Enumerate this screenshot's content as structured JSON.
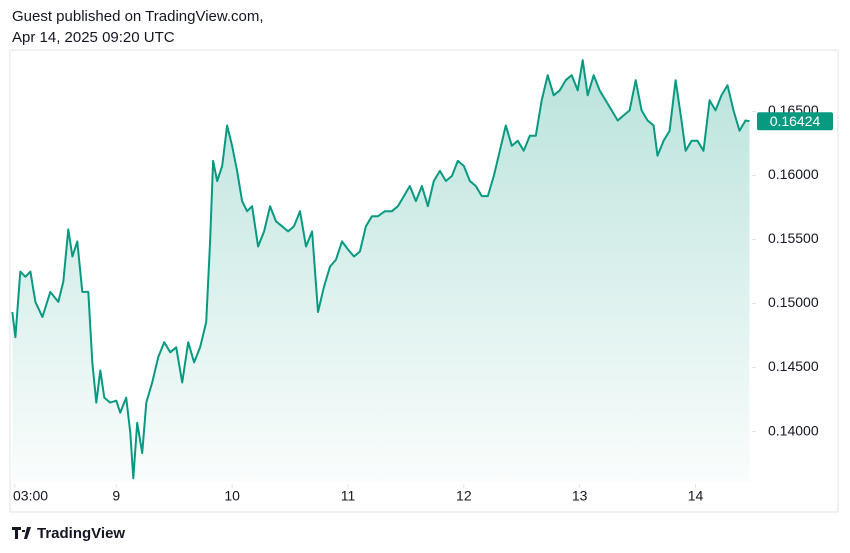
{
  "header": {
    "line1": "Guest published on TradingView.com,",
    "line2": "Apr 14, 2025 09:20 UTC"
  },
  "footer": {
    "brand": "TradingView"
  },
  "chart_data": {
    "type": "area",
    "color": "#089981",
    "x": [
      8.103,
      8.129,
      8.172,
      8.216,
      8.259,
      8.302,
      8.362,
      8.431,
      8.5,
      8.543,
      8.586,
      8.621,
      8.664,
      8.707,
      8.759,
      8.793,
      8.828,
      8.862,
      8.897,
      8.948,
      9,
      9.034,
      9.086,
      9.121,
      9.147,
      9.181,
      9.224,
      9.259,
      9.31,
      9.362,
      9.414,
      9.466,
      9.517,
      9.569,
      9.621,
      9.672,
      9.724,
      9.776,
      9.81,
      9.836,
      9.871,
      9.914,
      9.957,
      10,
      10.043,
      10.086,
      10.129,
      10.172,
      10.224,
      10.276,
      10.328,
      10.379,
      10.431,
      10.483,
      10.534,
      10.586,
      10.638,
      10.69,
      10.741,
      10.793,
      10.845,
      10.897,
      10.948,
      11,
      11.052,
      11.103,
      11.155,
      11.207,
      11.259,
      11.319,
      11.379,
      11.431,
      11.483,
      11.534,
      11.586,
      11.638,
      11.69,
      11.741,
      11.793,
      11.845,
      11.897,
      11.948,
      12,
      12.052,
      12.103,
      12.155,
      12.207,
      12.259,
      12.31,
      12.362,
      12.414,
      12.466,
      12.517,
      12.569,
      12.621,
      12.672,
      12.724,
      12.776,
      12.828,
      12.879,
      12.931,
      12.983,
      13.026,
      13.069,
      13.121,
      13.172,
      13.224,
      13.276,
      13.328,
      13.379,
      13.431,
      13.483,
      13.534,
      13.586,
      13.638,
      13.672,
      13.724,
      13.776,
      13.828,
      13.879,
      13.914,
      13.966,
      14.017,
      14.069,
      14.121,
      14.172,
      14.224,
      14.276,
      14.328,
      14.379,
      14.431,
      14.466
    ],
    "values": [
      0.14934,
      0.14737,
      0.15249,
      0.15209,
      0.15249,
      0.15013,
      0.14895,
      0.15091,
      0.15013,
      0.1517,
      0.15579,
      0.15367,
      0.15485,
      0.15091,
      0.15091,
      0.1454,
      0.14226,
      0.14477,
      0.14265,
      0.14226,
      0.14241,
      0.14147,
      0.14265,
      0.1399,
      0.13635,
      0.14068,
      0.13832,
      0.14226,
      0.14383,
      0.1458,
      0.14698,
      0.14619,
      0.14658,
      0.14383,
      0.14698,
      0.1454,
      0.14658,
      0.14855,
      0.15485,
      0.16114,
      0.15957,
      0.16075,
      0.1639,
      0.16232,
      0.16036,
      0.158,
      0.15721,
      0.1576,
      0.15445,
      0.15563,
      0.1576,
      0.15642,
      0.15603,
      0.15563,
      0.15603,
      0.15721,
      0.15445,
      0.15563,
      0.14934,
      0.15131,
      0.15288,
      0.15343,
      0.15485,
      0.15422,
      0.15367,
      0.15406,
      0.15603,
      0.15682,
      0.15682,
      0.15721,
      0.15721,
      0.1576,
      0.15839,
      0.15918,
      0.158,
      0.15918,
      0.1576,
      0.15957,
      0.16036,
      0.15957,
      0.15996,
      0.16114,
      0.16075,
      0.15957,
      0.15918,
      0.15839,
      0.15839,
      0.15996,
      0.16193,
      0.1639,
      0.16232,
      0.16271,
      0.16193,
      0.16311,
      0.16311,
      0.16587,
      0.16783,
      0.16626,
      0.16665,
      0.16744,
      0.16783,
      0.16665,
      0.16901,
      0.16626,
      0.16783,
      0.16665,
      0.16587,
      0.16508,
      0.16429,
      0.16469,
      0.16508,
      0.16744,
      0.16508,
      0.16429,
      0.1639,
      0.16154,
      0.16271,
      0.1635,
      0.16744,
      0.16429,
      0.16193,
      0.16271,
      0.16271,
      0.16193,
      0.16587,
      0.16508,
      0.16626,
      0.16705,
      0.16508,
      0.1635,
      0.16429,
      0.16424
    ],
    "xlim": [
      8.1,
      14.47
    ],
    "xticks": [
      {
        "value": 8.125,
        "label": "03:00"
      },
      9,
      10,
      11,
      12,
      13,
      14
    ],
    "ylim": [
      0.13606,
      0.1698
    ],
    "yticks": [
      {
        "value": 0.14,
        "label": "0.14000"
      },
      {
        "value": 0.145,
        "label": "0.14500"
      },
      {
        "value": 0.15,
        "label": "0.15000"
      },
      {
        "value": 0.155,
        "label": "0.15500"
      },
      {
        "value": 0.16,
        "label": "0.16000"
      },
      {
        "value": 0.165,
        "label": "0.16500"
      }
    ],
    "last_price": 0.16424
  }
}
